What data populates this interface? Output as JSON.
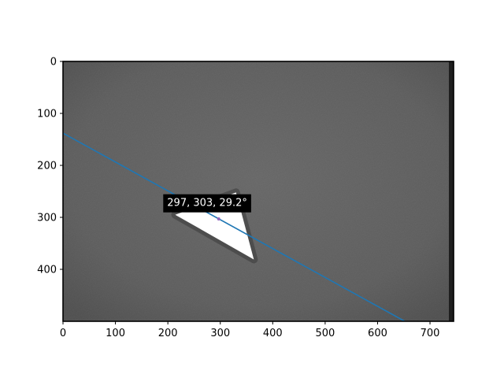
{
  "chart_data": {
    "type": "image",
    "title": "",
    "xlabel": "",
    "ylabel": "",
    "xlim": [
      0,
      745
    ],
    "ylim": [
      500,
      0
    ],
    "x_ticks": [
      0,
      100,
      200,
      300,
      400,
      500,
      600,
      700
    ],
    "y_ticks": [
      0,
      100,
      200,
      300,
      400
    ],
    "x_tick_labels": [
      "0",
      "100",
      "200",
      "300",
      "400",
      "500",
      "600",
      "700"
    ],
    "y_tick_labels": [
      "0",
      "100",
      "200",
      "300",
      "400"
    ],
    "grid": false,
    "image": {
      "description_colormap": "gray",
      "background_level": "dark gray",
      "object": {
        "shape": "triangle",
        "vertices": [
          [
            214,
            295
          ],
          [
            330,
            252
          ],
          [
            364,
            381
          ]
        ],
        "color": "#ffffff"
      }
    },
    "fit_line": {
      "points": [
        [
          0,
          138
        ],
        [
          652,
          500
        ]
      ],
      "color": "#1f77b4"
    },
    "center_marker": {
      "x": 297,
      "y": 303,
      "color": "#9467bd"
    },
    "annotation": {
      "text": "297, 303, 29.2°",
      "anchor_x": 275,
      "anchor_y": 273
    }
  }
}
